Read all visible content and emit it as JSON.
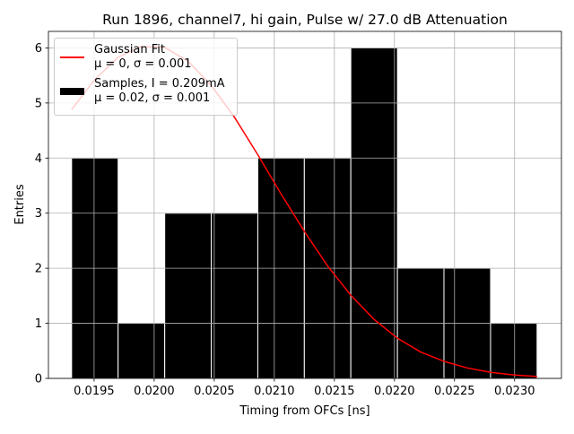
{
  "chart_data": {
    "type": "histogram",
    "title": "Run 1896, channel7, hi gain, Pulse w/ 27.0 dB Attenuation",
    "xlabel": "Timing from OFCs [ns]",
    "ylabel": "Entries",
    "xlim": [
      0.01912,
      0.02339
    ],
    "ylim": [
      0,
      6.3
    ],
    "xticks": [
      0.0195,
      {
        "value": 0.02,
        "label": "0.0200"
      },
      0.0205,
      {
        "value": 0.021,
        "label": "0.0210"
      },
      0.0215,
      {
        "value": 0.022,
        "label": "0.0220"
      },
      0.0225,
      {
        "value": 0.023,
        "label": "0.0230"
      }
    ],
    "yticks": [
      0,
      1,
      2,
      3,
      4,
      5,
      6
    ],
    "grid": true,
    "legend": "upper left",
    "series": [
      {
        "name": "Gaussian Fit\nμ = 0, σ = 0.001",
        "type": "line",
        "color": "#ff0000",
        "x": [
          0.019313,
          0.019507,
          0.0197,
          0.019894,
          0.020088,
          0.020282,
          0.020475,
          0.020669,
          0.020863,
          0.021056,
          0.02125,
          0.021444,
          0.021637,
          0.021831,
          0.022025,
          0.022218,
          0.022412,
          0.022606,
          0.0228,
          0.022993,
          0.023187
        ],
        "values": [
          4.88,
          5.43,
          5.83,
          6.03,
          6.01,
          5.76,
          5.32,
          4.74,
          4.06,
          3.35,
          2.67,
          2.04,
          1.51,
          1.07,
          0.73,
          0.48,
          0.31,
          0.19,
          0.11,
          0.063,
          0.034
        ]
      },
      {
        "name": "Samples, I = 0.209mA\nμ = 0.02, σ = 0.001",
        "type": "histogram",
        "color": "#000000",
        "bins": [
          0.019313,
          0.0197,
          0.020088,
          0.020475,
          0.020863,
          0.02125,
          0.021637,
          0.022025,
          0.022412,
          0.0228,
          0.023187
        ],
        "values": [
          4,
          1,
          3,
          3,
          4,
          4,
          6,
          2,
          2,
          1
        ]
      }
    ]
  }
}
